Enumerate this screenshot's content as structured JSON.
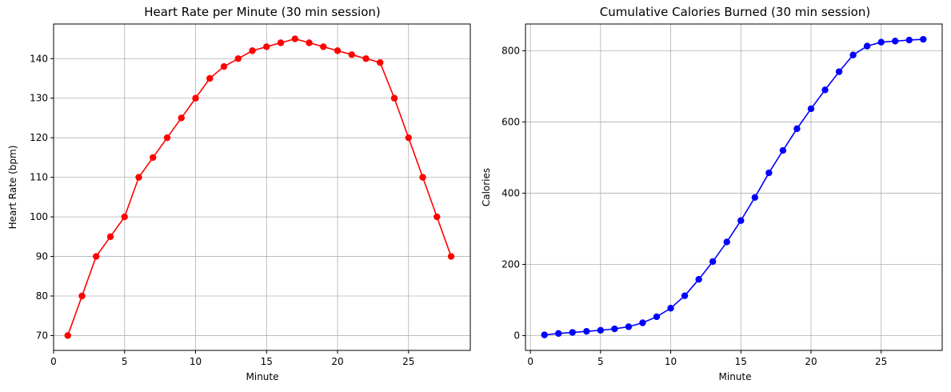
{
  "chart_data": [
    {
      "type": "line",
      "title": "Heart Rate per Minute (30 min session)",
      "xlabel": "Minute",
      "ylabel": "Heart Rate (bpm)",
      "xlim": [
        0,
        29.35
      ],
      "ylim": [
        66.25,
        148.75
      ],
      "xticks": [
        0,
        5,
        10,
        15,
        20,
        25
      ],
      "yticks": [
        70,
        80,
        90,
        100,
        110,
        120,
        130,
        140
      ],
      "grid": true,
      "color": "#ff0000",
      "marker": "circle",
      "x": [
        1,
        2,
        3,
        4,
        5,
        6,
        7,
        8,
        9,
        10,
        11,
        12,
        13,
        14,
        15,
        16,
        17,
        18,
        19,
        20,
        21,
        22,
        23,
        24,
        25,
        26,
        27,
        28
      ],
      "y": [
        70,
        80,
        90,
        95,
        100,
        110,
        115,
        120,
        125,
        130,
        135,
        138,
        140,
        142,
        143,
        144,
        145,
        144,
        143,
        142,
        141,
        140,
        139,
        130,
        120,
        110,
        100,
        90
      ]
    },
    {
      "type": "line",
      "title": "Cumulative Calories Burned (30 min session)",
      "xlabel": "Minute",
      "ylabel": "Calories",
      "xlim": [
        -0.35,
        29.35
      ],
      "ylim": [
        -41.5,
        875
      ],
      "xticks": [
        0,
        5,
        10,
        15,
        20,
        25
      ],
      "yticks": [
        0,
        200,
        400,
        600,
        800
      ],
      "grid": true,
      "color": "#0000ff",
      "marker": "circle",
      "x": [
        1,
        2,
        3,
        4,
        5,
        6,
        7,
        8,
        9,
        10,
        11,
        12,
        13,
        14,
        15,
        16,
        17,
        18,
        19,
        20,
        21,
        22,
        23,
        24,
        25,
        26,
        27,
        28
      ],
      "y": [
        2,
        6,
        9,
        12,
        15,
        19,
        25,
        36,
        53,
        77,
        112,
        158,
        208,
        263,
        323,
        388,
        457,
        520,
        581,
        637,
        690,
        741,
        788,
        813,
        824,
        827,
        830,
        832
      ]
    }
  ]
}
